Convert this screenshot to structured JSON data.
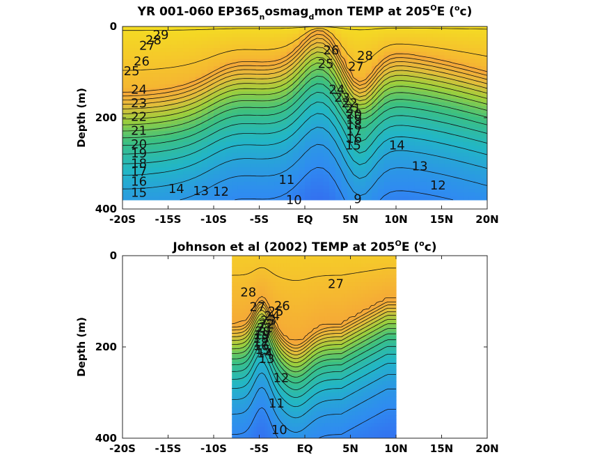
{
  "chart_data": [
    {
      "type": "heatmap",
      "title_parts": {
        "a": "YR 001-060 EP365",
        "sub1": "n",
        "b": "osmag",
        "sub2": "d",
        "c": "mon TEMP at 205",
        "sup1": "O",
        "d": "E (",
        "sup2": "o",
        "e": "c)"
      },
      "ylabel": "Depth (m)",
      "x_ticks": [
        "-20S",
        "-15S",
        "-10S",
        "-5S",
        "EQ",
        "5N",
        "10N",
        "15N",
        "20N"
      ],
      "x_tick_values": [
        -20,
        -15,
        -10,
        -5,
        0,
        5,
        10,
        15,
        20
      ],
      "y_ticks": [
        "0",
        "200",
        "400"
      ],
      "y_tick_values": [
        0,
        200,
        400
      ],
      "xlim": [
        -20,
        20
      ],
      "ylim": [
        0,
        400
      ],
      "y_reversed": true,
      "data_x_range": [
        -20,
        20
      ],
      "data_depth_range": [
        0,
        380
      ],
      "colormap": [
        "#3b3ef0",
        "#2f8cf0",
        "#22b6c6",
        "#3cc080",
        "#9ccf3c",
        "#e6bc3a",
        "#f5a638",
        "#f4f21a"
      ],
      "color_range": [
        8,
        30
      ],
      "contour_levels": [
        9,
        10,
        11,
        12,
        13,
        14,
        15,
        16,
        17,
        18,
        19,
        20,
        21,
        22,
        23,
        24,
        25,
        26,
        27,
        28,
        29
      ],
      "labels": [
        {
          "text": "29",
          "x": -15.8,
          "y": 18
        },
        {
          "text": "28",
          "x": -16.6,
          "y": 30
        },
        {
          "text": "27",
          "x": -17.3,
          "y": 42
        },
        {
          "text": "26",
          "x": -17.9,
          "y": 76
        },
        {
          "text": "25",
          "x": -19.0,
          "y": 98
        },
        {
          "text": "24",
          "x": -18.2,
          "y": 138
        },
        {
          "text": "23",
          "x": -18.2,
          "y": 168
        },
        {
          "text": "22",
          "x": -18.2,
          "y": 198
        },
        {
          "text": "21",
          "x": -18.2,
          "y": 228
        },
        {
          "text": "20",
          "x": -18.2,
          "y": 258
        },
        {
          "text": "19",
          "x": -18.2,
          "y": 278
        },
        {
          "text": "18",
          "x": -18.2,
          "y": 300
        },
        {
          "text": "17",
          "x": -18.2,
          "y": 318
        },
        {
          "text": "16",
          "x": -18.2,
          "y": 340
        },
        {
          "text": "15",
          "x": -18.2,
          "y": 364
        },
        {
          "text": "14",
          "x": -14.1,
          "y": 356
        },
        {
          "text": "13",
          "x": -11.4,
          "y": 360
        },
        {
          "text": "12",
          "x": -9.2,
          "y": 362
        },
        {
          "text": "11",
          "x": -2.0,
          "y": 336
        },
        {
          "text": "10",
          "x": -1.2,
          "y": 380
        },
        {
          "text": "9",
          "x": 5.8,
          "y": 378
        },
        {
          "text": "26",
          "x": 2.9,
          "y": 52
        },
        {
          "text": "25",
          "x": 2.3,
          "y": 82
        },
        {
          "text": "28",
          "x": 6.6,
          "y": 64
        },
        {
          "text": "27",
          "x": 5.6,
          "y": 88
        },
        {
          "text": "24",
          "x": 3.5,
          "y": 138
        },
        {
          "text": "23",
          "x": 4.1,
          "y": 156
        },
        {
          "text": "22",
          "x": 4.9,
          "y": 168
        },
        {
          "text": "21",
          "x": 5.3,
          "y": 180
        },
        {
          "text": "20",
          "x": 5.4,
          "y": 192
        },
        {
          "text": "19",
          "x": 5.4,
          "y": 204
        },
        {
          "text": "18",
          "x": 5.4,
          "y": 216
        },
        {
          "text": "17",
          "x": 5.4,
          "y": 230
        },
        {
          "text": "16",
          "x": 5.4,
          "y": 246
        },
        {
          "text": "15",
          "x": 5.3,
          "y": 260
        },
        {
          "text": "14",
          "x": 10.1,
          "y": 260
        },
        {
          "text": "13",
          "x": 12.6,
          "y": 306
        },
        {
          "text": "12",
          "x": 14.6,
          "y": 348
        }
      ]
    },
    {
      "type": "heatmap",
      "title_parts": {
        "a": "Johnson et al (2002) TEMP at 205",
        "sup1": "O",
        "b": "E (",
        "sup2": "o",
        "c": "c)"
      },
      "ylabel": "Depth (m)",
      "x_ticks": [
        "-20S",
        "-15S",
        "-10S",
        "-5S",
        "EQ",
        "5N",
        "10N",
        "15N",
        "20N"
      ],
      "x_tick_values": [
        -20,
        -15,
        -10,
        -5,
        0,
        5,
        10,
        15,
        20
      ],
      "y_ticks": [
        "0",
        "200",
        "400"
      ],
      "y_tick_values": [
        0,
        200,
        400
      ],
      "xlim": [
        -20,
        20
      ],
      "ylim": [
        0,
        400
      ],
      "y_reversed": true,
      "data_x_range": [
        -8,
        10
      ],
      "data_depth_range": [
        0,
        400
      ],
      "colormap": [
        "#3b3ef0",
        "#2f8cf0",
        "#22b6c6",
        "#3cc080",
        "#9ccf3c",
        "#e6bc3a",
        "#f5a638",
        "#f4f21a"
      ],
      "color_range": [
        8,
        30
      ],
      "contour_levels": [
        10,
        11,
        12,
        13,
        14,
        15,
        16,
        17,
        18,
        19,
        20,
        21,
        22,
        23,
        24,
        25,
        26,
        27,
        28
      ],
      "labels": [
        {
          "text": "28",
          "x": -6.2,
          "y": 80
        },
        {
          "text": "27",
          "x": -5.2,
          "y": 112
        },
        {
          "text": "27",
          "x": 3.4,
          "y": 62
        },
        {
          "text": "26",
          "x": -2.5,
          "y": 110
        },
        {
          "text": "25",
          "x": -3.2,
          "y": 122
        },
        {
          "text": "24",
          "x": -3.6,
          "y": 132
        },
        {
          "text": "23",
          "x": -4.0,
          "y": 142
        },
        {
          "text": "22",
          "x": -4.2,
          "y": 150
        },
        {
          "text": "21",
          "x": -4.4,
          "y": 158
        },
        {
          "text": "20",
          "x": -4.6,
          "y": 166
        },
        {
          "text": "19",
          "x": -4.7,
          "y": 174
        },
        {
          "text": "18",
          "x": -4.8,
          "y": 182
        },
        {
          "text": "17",
          "x": -4.8,
          "y": 190
        },
        {
          "text": "16",
          "x": -4.8,
          "y": 198
        },
        {
          "text": "15",
          "x": -4.6,
          "y": 206
        },
        {
          "text": "14",
          "x": -4.4,
          "y": 214
        },
        {
          "text": "13",
          "x": -4.2,
          "y": 226
        },
        {
          "text": "12",
          "x": -2.6,
          "y": 268
        },
        {
          "text": "11",
          "x": -3.1,
          "y": 324
        },
        {
          "text": "10",
          "x": -2.8,
          "y": 382
        }
      ]
    }
  ]
}
